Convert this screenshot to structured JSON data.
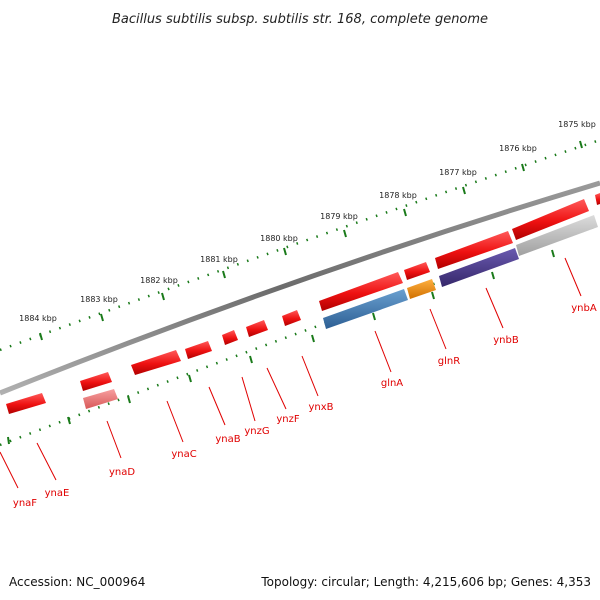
{
  "title": "Bacillus subtilis subsp. subtilis str. 168, complete genome",
  "footer": {
    "accession": "Accession: NC_000964",
    "topology": "Topology: circular; Length: 4,215,606 bp; Genes: 4,353"
  },
  "ticks": [
    "1875 kbp",
    "1876 kbp",
    "1877 kbp",
    "1878 kbp",
    "1879 kbp",
    "1880 kbp",
    "1881 kbp",
    "1882 kbp",
    "1883 kbp",
    "1884 kbp"
  ],
  "genes": [
    "ynaF",
    "ynaE",
    "ynaD",
    "ynaC",
    "ynaB",
    "ynzG",
    "ynzF",
    "ynxB",
    "glnA",
    "glnR",
    "ynbB",
    "ynbA"
  ],
  "colors": {
    "backbone": "#7a7a7a",
    "tick_dots": "#1a7a1a",
    "gene_red": "#ee1111",
    "gene_pink": "#f07070",
    "glnA_blue": "#3d7ab4",
    "glnR_orange": "#f08a00",
    "ynbB_purple": "#4a3a8a",
    "ynbA_gray": "#b4b4b4",
    "label_red": "#e00000"
  }
}
